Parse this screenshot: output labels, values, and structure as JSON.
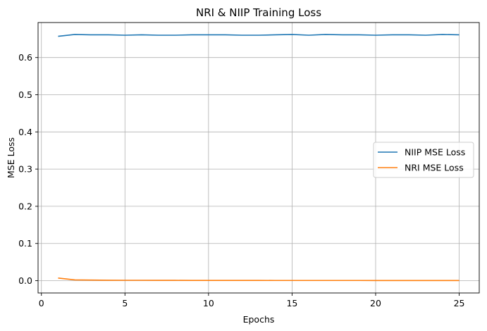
{
  "chart_data": {
    "type": "line",
    "title": "NRI & NIIP Training Loss",
    "xlabel": "Epochs",
    "ylabel": "MSE Loss",
    "xlim": [
      -0.2,
      26.2
    ],
    "ylim": [
      -0.0331,
      0.6941
    ],
    "xticks": [
      0,
      5,
      10,
      15,
      20,
      25
    ],
    "yticks": [
      0.0,
      0.1,
      0.2,
      0.3,
      0.4,
      0.5,
      0.6
    ],
    "xtick_labels": [
      "0",
      "5",
      "10",
      "15",
      "20",
      "25"
    ],
    "ytick_labels": [
      "0.0",
      "0.1",
      "0.2",
      "0.3",
      "0.4",
      "0.5",
      "0.6"
    ],
    "grid": true,
    "legend_position": "center-right",
    "x": [
      1,
      2,
      3,
      4,
      5,
      6,
      7,
      8,
      9,
      10,
      11,
      12,
      13,
      14,
      15,
      16,
      17,
      18,
      19,
      20,
      21,
      22,
      23,
      24,
      25
    ],
    "series": [
      {
        "name": "NIIP MSE Loss",
        "color": "#1f77b4",
        "values": [
          0.657,
          0.662,
          0.661,
          0.661,
          0.66,
          0.661,
          0.66,
          0.66,
          0.661,
          0.661,
          0.661,
          0.66,
          0.66,
          0.661,
          0.662,
          0.66,
          0.662,
          0.661,
          0.661,
          0.66,
          0.661,
          0.661,
          0.66,
          0.662,
          0.661
        ]
      },
      {
        "name": "NRI MSE Loss",
        "color": "#ff7f0e",
        "values": [
          0.007,
          0.002,
          0.0015,
          0.0012,
          0.001,
          0.001,
          0.0008,
          0.0008,
          0.0007,
          0.0007,
          0.0006,
          0.0006,
          0.0006,
          0.0005,
          0.0005,
          0.0005,
          0.0005,
          0.0005,
          0.0005,
          0.0004,
          0.0004,
          0.0004,
          0.0004,
          0.0004,
          0.0004
        ]
      }
    ]
  }
}
